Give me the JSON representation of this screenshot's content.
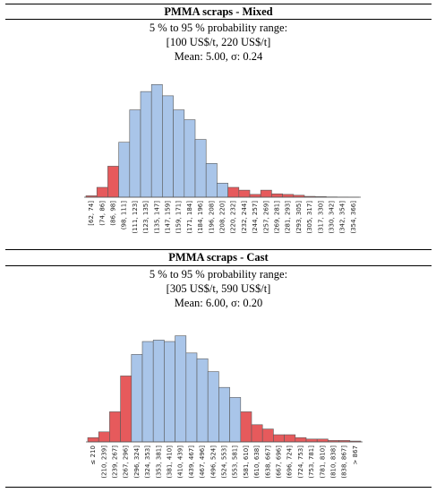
{
  "colors": {
    "center": "#a9c5e9",
    "tail": "#e65a5c",
    "stroke": "#5a5a5a"
  },
  "panels": [
    {
      "title": "PMMA scraps - Mixed",
      "range_caption": "5 % to 95 % probability range:",
      "range_values": "[100 US$/t, 220 US$/t]",
      "stats": "Mean: 5.00, σ: 0.24"
    },
    {
      "title": "PMMA scraps - Cast",
      "range_caption": "5 % to 95 % probability range:",
      "range_values": "[305 US$/t, 590 US$/t]",
      "stats": "Mean: 6.00, σ: 0.20"
    }
  ],
  "chart_data": [
    {
      "type": "bar",
      "title": "PMMA scraps - Mixed",
      "categories": [
        "[62, 74]",
        "(74, 86]",
        "(86, 98]",
        "(98, 111]",
        "(111, 123]",
        "(123, 135]",
        "(135, 147]",
        "(147, 159]",
        "(159, 171]",
        "(171, 184]",
        "(184, 196]",
        "(196, 208]",
        "(208, 220]",
        "(220, 232]",
        "(232, 244]",
        "(244, 257]",
        "(257, 269]",
        "(269, 281]",
        "(281, 293]",
        "(293, 305]",
        "(305, 317]",
        "(317, 330]",
        "(330, 342]",
        "(342, 354]",
        "(354, 366]"
      ],
      "values": [
        0.5,
        3.5,
        11,
        19.5,
        31,
        37.5,
        40,
        36,
        31,
        27.5,
        20.5,
        12,
        5,
        3.5,
        2.5,
        1,
        2.5,
        1.2,
        1,
        0.7,
        0.3,
        0.2,
        0.1,
        0.05,
        0.02
      ],
      "highlight": [
        "tail",
        "tail",
        "tail",
        "center",
        "center",
        "center",
        "center",
        "center",
        "center",
        "center",
        "center",
        "center",
        "center",
        "tail",
        "tail",
        "tail",
        "tail",
        "tail",
        "tail",
        "tail",
        "tail",
        "tail",
        "tail",
        "tail",
        "tail"
      ],
      "ylim": [
        0,
        42
      ],
      "grid": false
    },
    {
      "type": "bar",
      "title": "PMMA scraps - Cast",
      "categories": [
        "≤ 210",
        "(210, 239]",
        "(239, 267]",
        "(267, 296]",
        "(296, 324]",
        "(324, 353]",
        "(353, 381]",
        "(381, 410]",
        "(410, 439]",
        "(439, 467]",
        "(467, 496]",
        "(496, 524]",
        "(524, 553]",
        "(553, 581]",
        "(581, 610]",
        "(610, 638]",
        "(638, 667]",
        "(667, 696]",
        "(696, 724]",
        "(724, 753]",
        "(753, 781]",
        "(781, 810]",
        "(810, 838]",
        "(838, 867]",
        "> 867"
      ],
      "values": [
        1.5,
        3.5,
        10.5,
        23,
        30.5,
        35,
        35.5,
        35,
        37,
        31,
        29,
        24.5,
        19,
        15.5,
        10.5,
        6,
        4.5,
        2.5,
        2.5,
        1.5,
        1,
        1,
        0.5,
        0.5,
        0.3
      ],
      "highlight": [
        "tail",
        "tail",
        "tail",
        "tail",
        "center",
        "center",
        "center",
        "center",
        "center",
        "center",
        "center",
        "center",
        "center",
        "center",
        "tail",
        "tail",
        "tail",
        "tail",
        "tail",
        "tail",
        "tail",
        "tail",
        "tail",
        "tail",
        "tail"
      ],
      "ylim": [
        0,
        40
      ],
      "grid": false
    }
  ]
}
